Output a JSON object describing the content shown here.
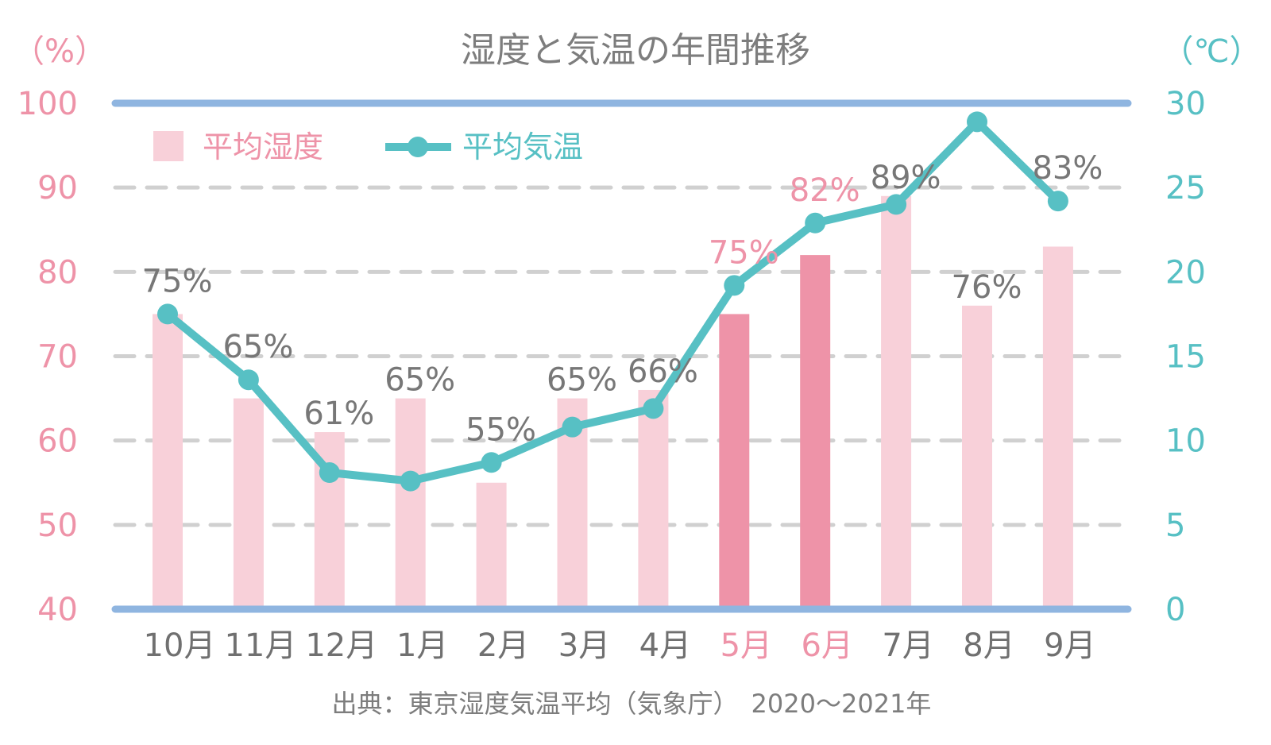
{
  "title": "湿度と気温の年間推移",
  "source": "出典：東京湿度気温平均（気象庁）　2020～2021年",
  "left_unit": "（%）",
  "right_unit": "（℃）",
  "legend": {
    "humidity": "平均湿度",
    "temperature": "平均気温"
  },
  "colors": {
    "bar": "#f8d0d9",
    "bar_highlight": "#ee93a8",
    "line": "#57c0c4",
    "axis": "#8fb5e0",
    "grid": "#d0d0d0",
    "left_ticks": "#ee93a8",
    "right_ticks": "#57c0c4",
    "text": "#777777"
  },
  "chart_data": {
    "type": "bar",
    "categories": [
      "10月",
      "11月",
      "12月",
      "1月",
      "2月",
      "3月",
      "4月",
      "5月",
      "6月",
      "7月",
      "8月",
      "9月"
    ],
    "highlight": [
      "5月",
      "6月"
    ],
    "series": [
      {
        "name": "平均湿度",
        "type": "bar",
        "axis": "left",
        "values": [
          75,
          65,
          61,
          65,
          55,
          65,
          66,
          75,
          82,
          89,
          76,
          83
        ],
        "labels": [
          "75%",
          "65%",
          "61%",
          "65%",
          "55%",
          "65%",
          "66%",
          "75%",
          "82%",
          "89%",
          "76%",
          "83%"
        ]
      },
      {
        "name": "平均気温",
        "type": "line",
        "axis": "right",
        "values": [
          17.5,
          13.6,
          8.1,
          7.6,
          8.7,
          10.8,
          11.9,
          19.2,
          22.9,
          24.0,
          28.9,
          24.2
        ]
      }
    ],
    "y_left": {
      "min": 40,
      "max": 100,
      "ticks": [
        40,
        50,
        60,
        70,
        80,
        90,
        100
      ]
    },
    "y_right": {
      "min": 0,
      "max": 30,
      "ticks": [
        0,
        5,
        10,
        15,
        20,
        25,
        30
      ]
    },
    "grid": "dashed",
    "legend_position": "top-left"
  }
}
